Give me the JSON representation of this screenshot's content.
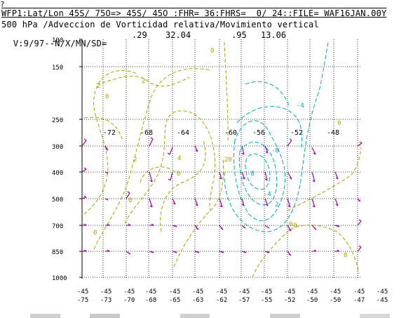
{
  "header": {
    "help": "?",
    "line1": "WFP1:Lat/Lon 45S/ 75O=> 45S/ 45O :FHR= 36:FHRS=  0/ 24::FILE= WAF16JAN.00Y",
    "line2": "500 hPa /Adveccion de Vorticidad relativa/Movimiento vertical",
    "line3": "V:9/97--N/X/MN/SD=",
    "stats": [
      ".29",
      "32.04",
      ".95",
      "13.06"
    ]
  },
  "colors": {
    "axis": "#000000",
    "grid": "#000000",
    "contour_adv": "#a8a000",
    "contour_omega": "#00a8b8",
    "wind": "#a000b0",
    "help": "#0000cc"
  },
  "chart_data": {
    "type": "contour",
    "title": "500 hPa /Adveccion de Vorticidad relativa/Movimiento vertical",
    "y_axis": {
      "label": "",
      "ticks": [
        "100",
        "150",
        "250",
        "300",
        "400",
        "500",
        "700",
        "850",
        "1000"
      ],
      "scale": "pressure"
    },
    "x_axis": {
      "label": "",
      "lat_ticks": [
        "-45",
        "-45",
        "-45",
        "-45",
        "-45",
        "-45",
        "-45",
        "-45",
        "-45",
        "-45",
        "-45",
        "-45",
        "-45",
        "-45"
      ],
      "lon_ticks": [
        "-75",
        "-73",
        "-70",
        "-68",
        "-65",
        "-63",
        "-62",
        "-57",
        "-55",
        "-52",
        "-50",
        "-50",
        "-47",
        "-45"
      ]
    },
    "top_longitude_labels": [
      "-72",
      "-68",
      "-64",
      "-60",
      "-56",
      "-52",
      "-48"
    ],
    "contour_labels_adv": [
      "0",
      "2",
      "0",
      "2",
      "2",
      "4",
      "0",
      "20",
      "0",
      "0",
      "0",
      "0",
      "0",
      "0"
    ],
    "contour_labels_omega": [
      "-4",
      "-8",
      "-8",
      "-4",
      "2"
    ],
    "grid": true
  }
}
